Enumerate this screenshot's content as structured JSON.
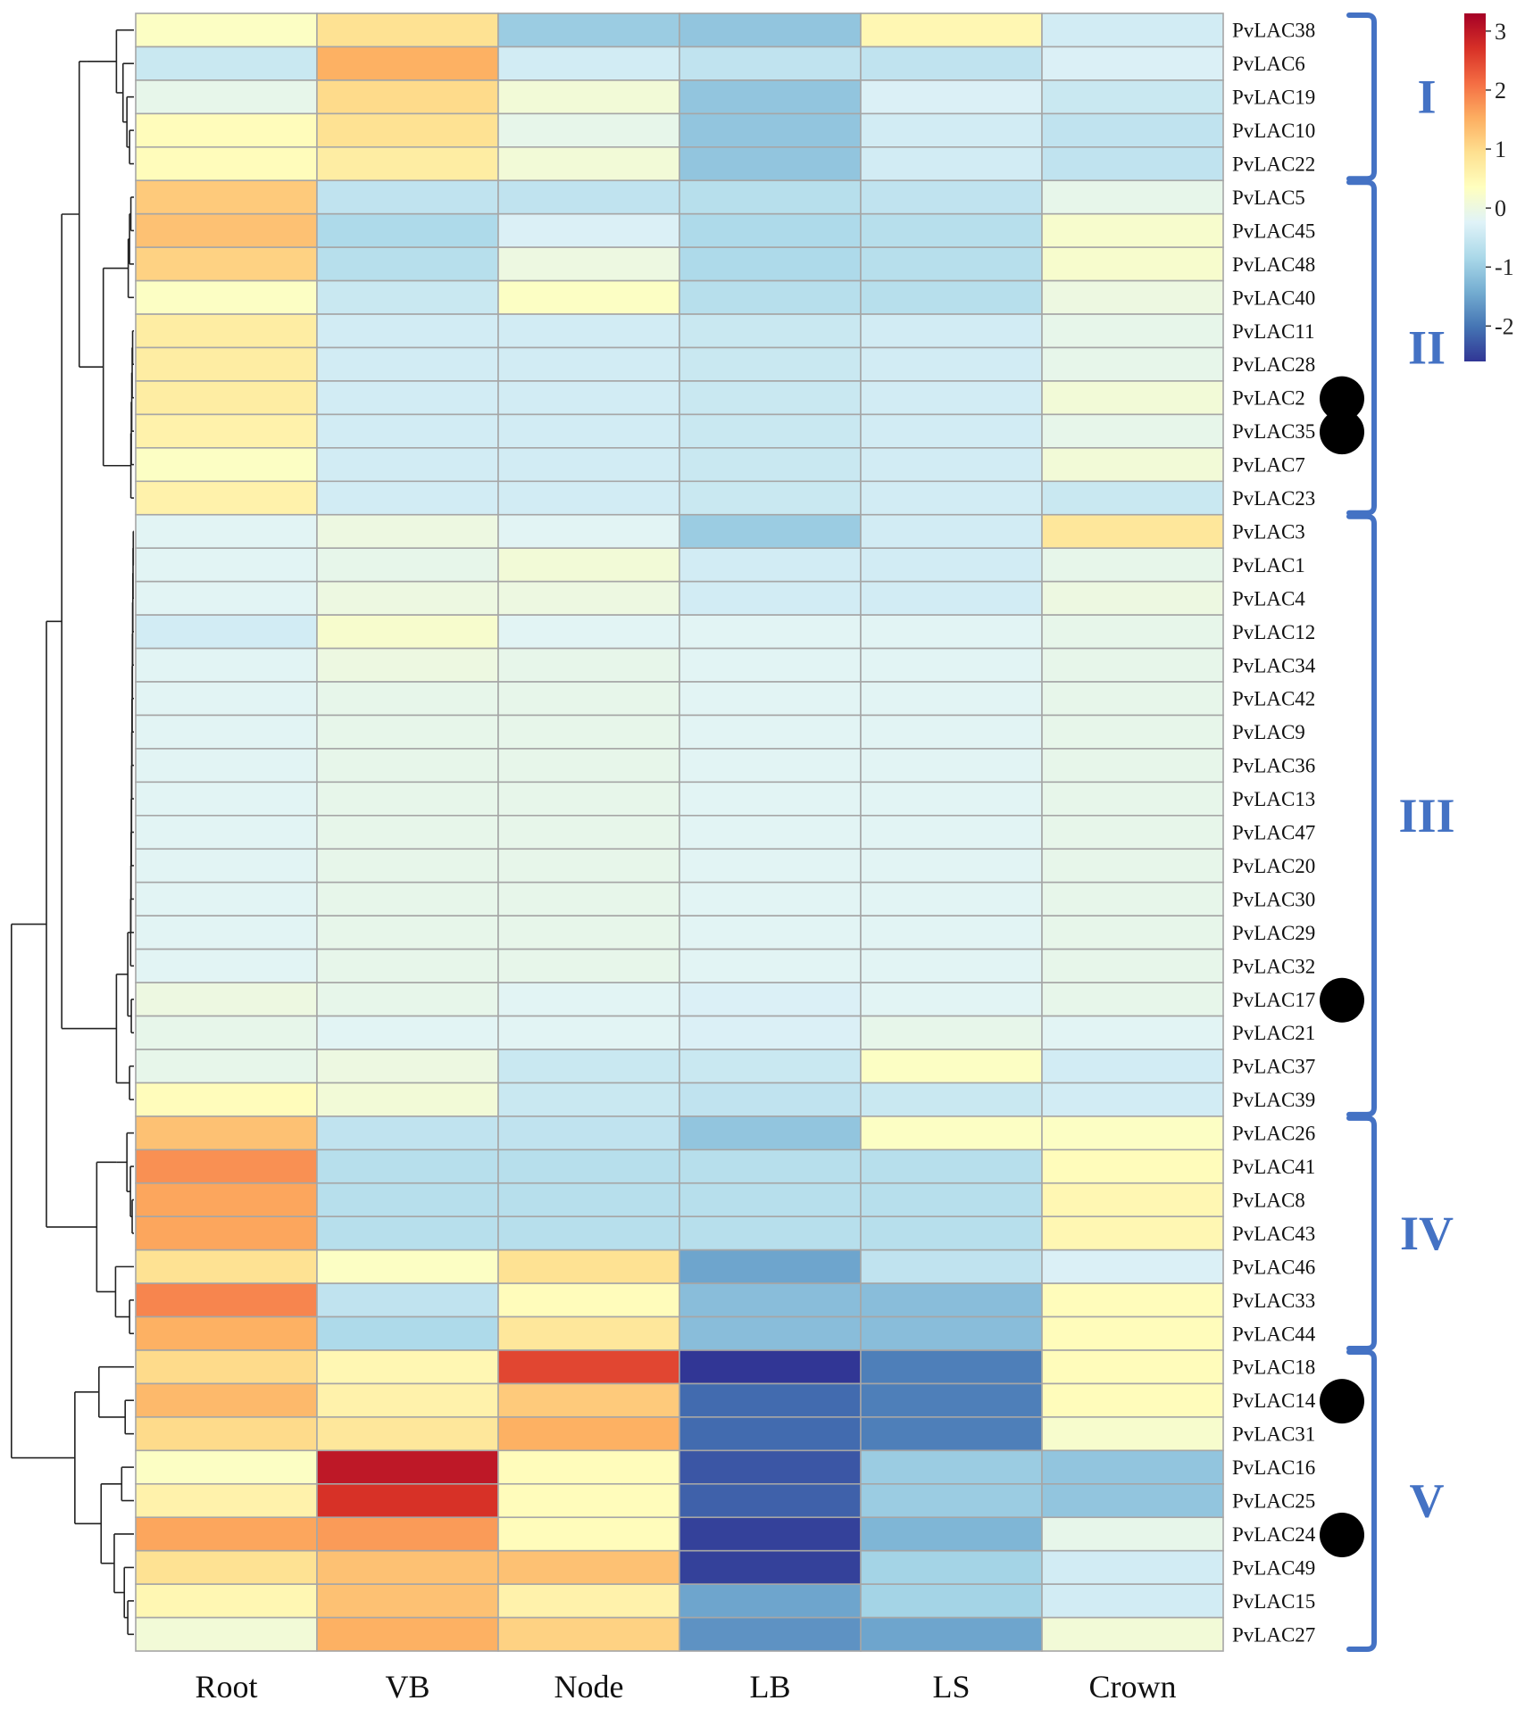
{
  "chart_data": {
    "type": "heatmap",
    "title": "",
    "columns": [
      "Root",
      "VB",
      "Node",
      "LB",
      "LS",
      "Crown"
    ],
    "rows": [
      "PvLAC38",
      "PvLAC6",
      "PvLAC19",
      "PvLAC10",
      "PvLAC22",
      "PvLAC5",
      "PvLAC45",
      "PvLAC48",
      "PvLAC40",
      "PvLAC11",
      "PvLAC28",
      "PvLAC2",
      "PvLAC35",
      "PvLAC7",
      "PvLAC23",
      "PvLAC3",
      "PvLAC1",
      "PvLAC4",
      "PvLAC12",
      "PvLAC34",
      "PvLAC42",
      "PvLAC9",
      "PvLAC36",
      "PvLAC13",
      "PvLAC47",
      "PvLAC20",
      "PvLAC30",
      "PvLAC29",
      "PvLAC32",
      "PvLAC17",
      "PvLAC21",
      "PvLAC37",
      "PvLAC39",
      "PvLAC26",
      "PvLAC41",
      "PvLAC8",
      "PvLAC43",
      "PvLAC46",
      "PvLAC33",
      "PvLAC44",
      "PvLAC18",
      "PvLAC14",
      "PvLAC31",
      "PvLAC16",
      "PvLAC25",
      "PvLAC24",
      "PvLAC49",
      "PvLAC15",
      "PvLAC27"
    ],
    "values": [
      [
        0.3,
        0.9,
        -1.0,
        -1.1,
        0.5,
        -0.4
      ],
      [
        -0.5,
        1.5,
        -0.4,
        -0.6,
        -0.6,
        -0.3
      ],
      [
        -0.1,
        1.0,
        0.1,
        -1.1,
        -0.3,
        -0.5
      ],
      [
        0.4,
        0.9,
        -0.1,
        -1.1,
        -0.4,
        -0.6
      ],
      [
        0.4,
        0.7,
        0.1,
        -1.1,
        -0.4,
        -0.6
      ],
      [
        1.2,
        -0.6,
        -0.6,
        -0.7,
        -0.6,
        -0.1
      ],
      [
        1.3,
        -0.8,
        -0.3,
        -0.8,
        -0.7,
        0.2
      ],
      [
        1.1,
        -0.7,
        0.0,
        -0.8,
        -0.7,
        0.2
      ],
      [
        0.3,
        -0.5,
        0.3,
        -0.7,
        -0.7,
        0.0
      ],
      [
        0.7,
        -0.4,
        -0.4,
        -0.5,
        -0.4,
        -0.1
      ],
      [
        0.7,
        -0.4,
        -0.4,
        -0.5,
        -0.4,
        -0.1
      ],
      [
        0.7,
        -0.4,
        -0.4,
        -0.5,
        -0.4,
        0.1
      ],
      [
        0.6,
        -0.4,
        -0.4,
        -0.5,
        -0.4,
        -0.1
      ],
      [
        0.3,
        -0.4,
        -0.4,
        -0.5,
        -0.4,
        0.1
      ],
      [
        0.6,
        -0.4,
        -0.4,
        -0.5,
        -0.4,
        -0.5
      ],
      [
        -0.2,
        0.0,
        -0.2,
        -1.0,
        -0.4,
        0.8
      ],
      [
        -0.2,
        -0.1,
        0.1,
        -0.4,
        -0.4,
        -0.1
      ],
      [
        -0.2,
        0.0,
        0.0,
        -0.4,
        -0.4,
        0.0
      ],
      [
        -0.4,
        0.2,
        -0.2,
        -0.2,
        -0.2,
        -0.1
      ],
      [
        -0.2,
        0.0,
        -0.1,
        -0.2,
        -0.2,
        -0.1
      ],
      [
        -0.2,
        -0.1,
        -0.1,
        -0.2,
        -0.2,
        -0.1
      ],
      [
        -0.2,
        -0.1,
        -0.1,
        -0.2,
        -0.2,
        -0.1
      ],
      [
        -0.2,
        -0.1,
        -0.1,
        -0.2,
        -0.2,
        -0.1
      ],
      [
        -0.2,
        -0.1,
        -0.1,
        -0.2,
        -0.2,
        -0.1
      ],
      [
        -0.2,
        -0.1,
        -0.1,
        -0.2,
        -0.2,
        -0.1
      ],
      [
        -0.2,
        -0.1,
        -0.1,
        -0.2,
        -0.2,
        -0.1
      ],
      [
        -0.2,
        -0.1,
        -0.1,
        -0.2,
        -0.2,
        -0.1
      ],
      [
        -0.2,
        -0.1,
        -0.1,
        -0.2,
        -0.2,
        -0.1
      ],
      [
        -0.2,
        -0.1,
        -0.1,
        -0.2,
        -0.2,
        -0.1
      ],
      [
        0.0,
        -0.1,
        -0.2,
        -0.3,
        -0.2,
        -0.1
      ],
      [
        -0.1,
        -0.2,
        -0.2,
        -0.3,
        -0.1,
        -0.2
      ],
      [
        -0.1,
        0.0,
        -0.5,
        -0.5,
        0.3,
        -0.4
      ],
      [
        0.4,
        0.1,
        -0.5,
        -0.6,
        -0.5,
        -0.4
      ],
      [
        1.3,
        -0.6,
        -0.6,
        -1.1,
        0.3,
        0.3
      ],
      [
        1.8,
        -0.7,
        -0.7,
        -0.7,
        -0.7,
        0.4
      ],
      [
        1.6,
        -0.7,
        -0.7,
        -0.7,
        -0.7,
        0.5
      ],
      [
        1.6,
        -0.7,
        -0.7,
        -0.7,
        -0.7,
        0.5
      ],
      [
        0.9,
        0.3,
        0.9,
        -1.5,
        -0.6,
        -0.3
      ],
      [
        1.9,
        -0.6,
        0.4,
        -1.2,
        -1.2,
        0.4
      ],
      [
        1.5,
        -0.8,
        0.8,
        -1.2,
        -1.2,
        0.4
      ],
      [
        1.0,
        0.5,
        2.5,
        -2.6,
        -1.9,
        0.4
      ],
      [
        1.4,
        0.6,
        1.2,
        -2.1,
        -1.9,
        0.4
      ],
      [
        1.0,
        0.8,
        1.5,
        -2.1,
        -1.9,
        0.2
      ],
      [
        0.3,
        3.0,
        0.4,
        -2.3,
        -1.0,
        -1.1
      ],
      [
        0.6,
        2.7,
        0.4,
        -2.2,
        -1.0,
        -1.1
      ],
      [
        1.6,
        1.7,
        0.4,
        -2.5,
        -1.3,
        -0.1
      ],
      [
        0.9,
        1.3,
        1.3,
        -2.5,
        -0.9,
        -0.4
      ],
      [
        0.5,
        1.3,
        0.6,
        -1.5,
        -0.9,
        -0.4
      ],
      [
        0.1,
        1.5,
        1.1,
        -1.7,
        -1.5,
        0.1
      ]
    ],
    "color_scale": {
      "low": "#313695",
      "mid": "#FFFFBF",
      "high": "#A50026",
      "stops": [
        "#313695",
        "#4575B4",
        "#74ADD1",
        "#ABD9E9",
        "#E0F3F8",
        "#FFFFBF",
        "#FEE090",
        "#FDAE61",
        "#F46D43",
        "#D73027",
        "#A50026"
      ],
      "range": [
        -2.6,
        3.3
      ],
      "tick_labels": [
        "3",
        "2",
        "1",
        "0",
        "-1",
        "-2"
      ],
      "tick_values": [
        3,
        2,
        1,
        0,
        -1,
        -2
      ]
    },
    "groups": [
      {
        "label": "I",
        "first_row": 0,
        "last_row": 4
      },
      {
        "label": "II",
        "first_row": 5,
        "last_row": 14
      },
      {
        "label": "III",
        "first_row": 15,
        "last_row": 32
      },
      {
        "label": "IV",
        "first_row": 33,
        "last_row": 39
      },
      {
        "label": "V",
        "first_row": 40,
        "last_row": 48
      }
    ],
    "marked_rows": [
      "PvLAC2",
      "PvLAC35",
      "PvLAC17",
      "PvLAC14",
      "PvLAC24"
    ],
    "group_color": "#4472C4",
    "grid_color": "#A6A6A6",
    "dendrogram_color": "#222222"
  }
}
